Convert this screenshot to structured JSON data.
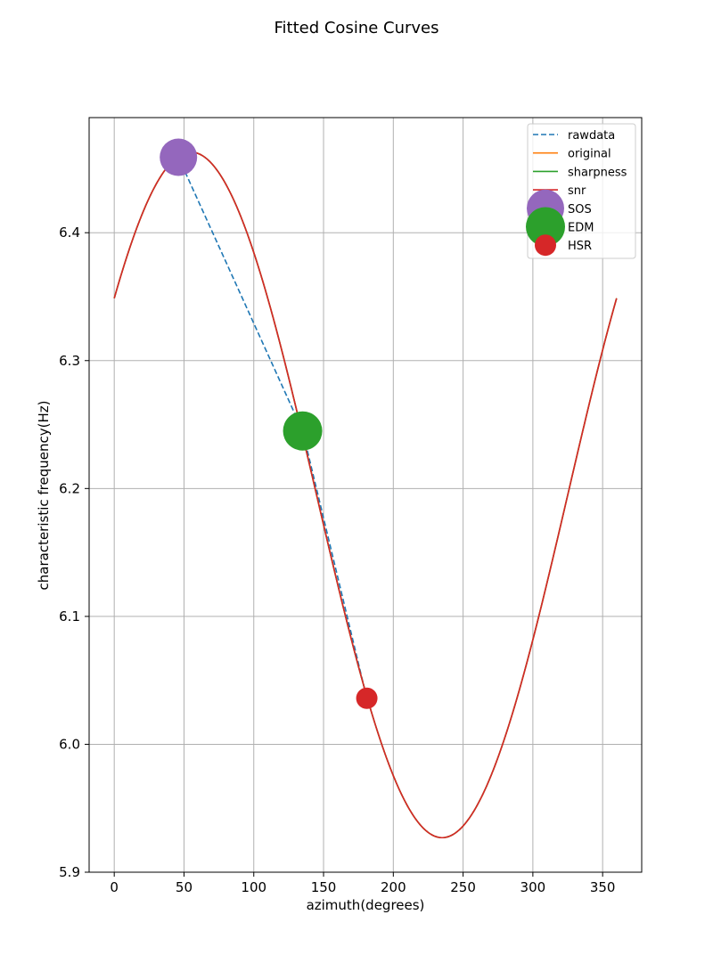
{
  "chart_data": {
    "type": "line",
    "title": "Fitted Cosine Curves",
    "xlabel": "azimuth(degrees)",
    "ylabel": "characteristic frequency(Hz)",
    "xlim": [
      -18,
      378
    ],
    "ylim": [
      5.9,
      6.49
    ],
    "xticks": [
      0,
      50,
      100,
      150,
      200,
      250,
      300,
      350
    ],
    "yticks": [
      5.9,
      6.0,
      6.1,
      6.2,
      6.3,
      6.4
    ],
    "xtick_labels": [
      "0",
      "50",
      "100",
      "150",
      "200",
      "250",
      "300",
      "350"
    ],
    "ytick_labels": [
      "5.9",
      "6.0",
      "6.1",
      "6.2",
      "6.3",
      "6.4"
    ],
    "grid": true,
    "legend_position": "top-right",
    "cosine_fit": {
      "mean": 6.195,
      "amplitude": 0.268,
      "phase_deg": 55,
      "x_range": [
        0,
        360
      ],
      "approx_values": [
        {
          "x": 0,
          "y": 6.348
        },
        {
          "x": 55,
          "y": 6.463
        },
        {
          "x": 100,
          "y": 6.385
        },
        {
          "x": 145,
          "y": 6.195
        },
        {
          "x": 200,
          "y": 5.975
        },
        {
          "x": 235,
          "y": 5.927
        },
        {
          "x": 300,
          "y": 6.08
        },
        {
          "x": 360,
          "y": 6.348
        }
      ]
    },
    "series": [
      {
        "name": "rawdata",
        "style": "dashed",
        "color": "#1f77b4",
        "x": [
          46,
          135,
          181
        ],
        "y": [
          6.459,
          6.245,
          6.036
        ]
      },
      {
        "name": "original",
        "style": "solid",
        "color": "#ff7f0e",
        "curve": "cosine_fit"
      },
      {
        "name": "sharpness",
        "style": "solid",
        "color": "#2ca02c",
        "curve": "cosine_fit"
      },
      {
        "name": "snr",
        "style": "solid",
        "color": "#d62728",
        "curve": "cosine_fit"
      }
    ],
    "points": [
      {
        "name": "SOS",
        "x": 46,
        "y": 6.459,
        "color": "#9467bd",
        "size": "large"
      },
      {
        "name": "EDM",
        "x": 135,
        "y": 6.245,
        "color": "#2ca02c",
        "size": "xlarge"
      },
      {
        "name": "HSR",
        "x": 181,
        "y": 6.036,
        "color": "#d62728",
        "size": "medium"
      }
    ]
  }
}
